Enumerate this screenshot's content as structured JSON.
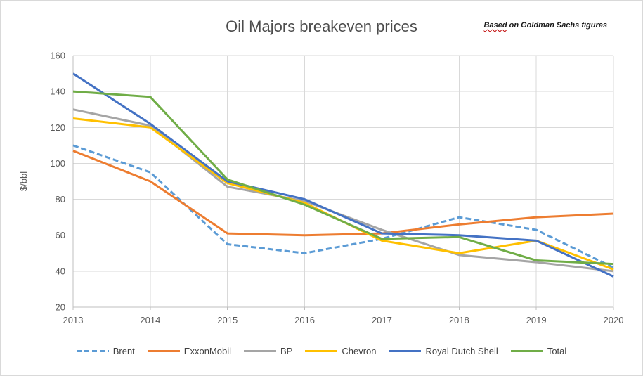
{
  "chart_data": {
    "type": "line",
    "title": "Oil Majors breakeven prices",
    "annotation": {
      "lead": "Based",
      "rest": " on Goldman Sachs figures"
    },
    "ylabel": "$/bbl",
    "xlabel": "",
    "ylim": [
      20,
      160
    ],
    "yticks": [
      20,
      40,
      60,
      80,
      100,
      120,
      140,
      160
    ],
    "categories": [
      "2013",
      "2014",
      "2015",
      "2016",
      "2017",
      "2018",
      "2019",
      "2020"
    ],
    "grid": true,
    "legend_position": "bottom",
    "series": [
      {
        "name": "Brent",
        "color": "#5B9BD5",
        "dash": true,
        "values": [
          110,
          95,
          55,
          50,
          58,
          70,
          63,
          42
        ]
      },
      {
        "name": "ExxonMobil",
        "color": "#ED7D31",
        "dash": false,
        "values": [
          107,
          90,
          61,
          60,
          61,
          66,
          70,
          72
        ]
      },
      {
        "name": "BP",
        "color": "#A5A5A5",
        "dash": false,
        "values": [
          130,
          121,
          87,
          79,
          63,
          49,
          45,
          40
        ]
      },
      {
        "name": "Chevron",
        "color": "#FFC000",
        "dash": false,
        "values": [
          125,
          120,
          89,
          78,
          57,
          50,
          57,
          41
        ]
      },
      {
        "name": "Royal Dutch Shell",
        "color": "#4472C4",
        "dash": false,
        "values": [
          150,
          122,
          90,
          80,
          61,
          60,
          57,
          37
        ]
      },
      {
        "name": "Total",
        "color": "#70AD47",
        "dash": false,
        "values": [
          140,
          137,
          91,
          77,
          58,
          59,
          46,
          44
        ]
      }
    ]
  },
  "colors": {
    "gridline": "#D9D9D9",
    "axis_line": "#BFBFBF",
    "tick_text": "#595959",
    "title_text": "#4D4D4D",
    "legend_text": "#404040",
    "annotation_underline": "#C00000"
  }
}
